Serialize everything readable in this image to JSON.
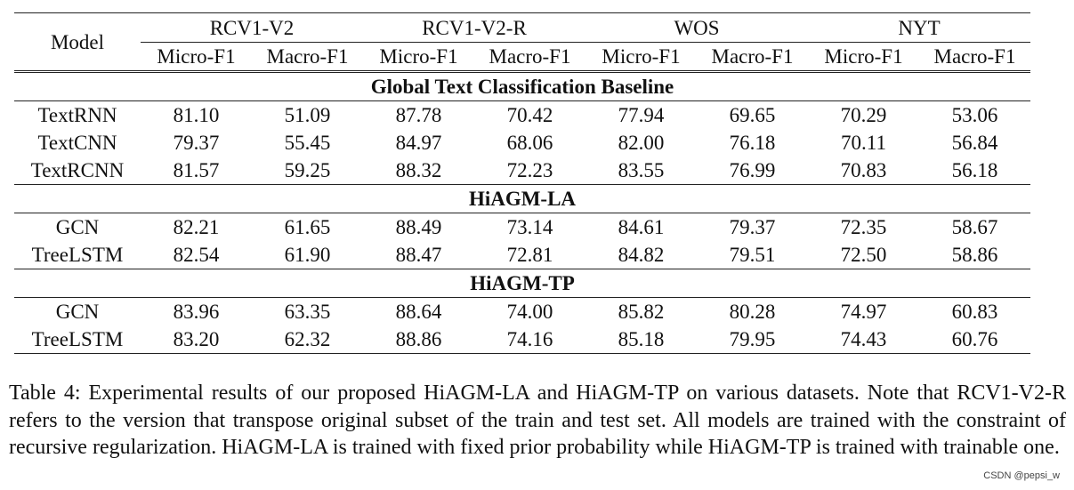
{
  "table": {
    "model_header": "Model",
    "datasets": [
      "RCV1-V2",
      "RCV1-V2-R",
      "WOS",
      "NYT"
    ],
    "metrics": [
      "Micro-F1",
      "Macro-F1",
      "Micro-F1",
      "Macro-F1",
      "Micro-F1",
      "Macro-F1",
      "Micro-F1",
      "Macro-F1"
    ],
    "sections": [
      {
        "title": "Global Text Classification Baseline",
        "rows": [
          {
            "model": "TextRNN",
            "values": [
              "81.10",
              "51.09",
              "87.78",
              "70.42",
              "77.94",
              "69.65",
              "70.29",
              "53.06"
            ],
            "bold": []
          },
          {
            "model": "TextCNN",
            "values": [
              "79.37",
              "55.45",
              "84.97",
              "68.06",
              "82.00",
              "76.18",
              "70.11",
              "56.84"
            ],
            "bold": []
          },
          {
            "model": "TextRCNN",
            "values": [
              "81.57",
              "59.25",
              "88.32",
              "72.23",
              "83.55",
              "76.99",
              "70.83",
              "56.18"
            ],
            "bold": []
          }
        ]
      },
      {
        "title": "HiAGM-LA",
        "rows": [
          {
            "model": "GCN",
            "values": [
              "82.21",
              "61.65",
              "88.49",
              "73.14",
              "84.61",
              "79.37",
              "72.35",
              "58.67"
            ],
            "bold": []
          },
          {
            "model": "TreeLSTM",
            "values": [
              "82.54",
              "61.90",
              "88.47",
              "72.81",
              "84.82",
              "79.51",
              "72.50",
              "58.86"
            ],
            "bold": []
          }
        ]
      },
      {
        "title": "HiAGM-TP",
        "rows": [
          {
            "model": "GCN",
            "values": [
              "83.96",
              "63.35",
              "88.64",
              "74.00",
              "85.82",
              "80.28",
              "74.97",
              "60.83"
            ],
            "bold": [
              0,
              1,
              4,
              5,
              6,
              7
            ]
          },
          {
            "model": "TreeLSTM",
            "values": [
              "83.20",
              "62.32",
              "88.86",
              "74.16",
              "85.18",
              "79.95",
              "74.43",
              "60.76"
            ],
            "bold": [
              2,
              3
            ]
          }
        ]
      }
    ]
  },
  "caption": "Table 4: Experimental results of our proposed HiAGM-LA and HiAGM-TP on various datasets. Note that RCV1-V2-R refers to the version that transpose original subset of the train and test set.  All models are trained with the constraint of recursive regularization. HiAGM-LA is trained with fixed prior probability while HiAGM-TP is trained with trainable one.",
  "watermark": "CSDN @pepsi_w"
}
